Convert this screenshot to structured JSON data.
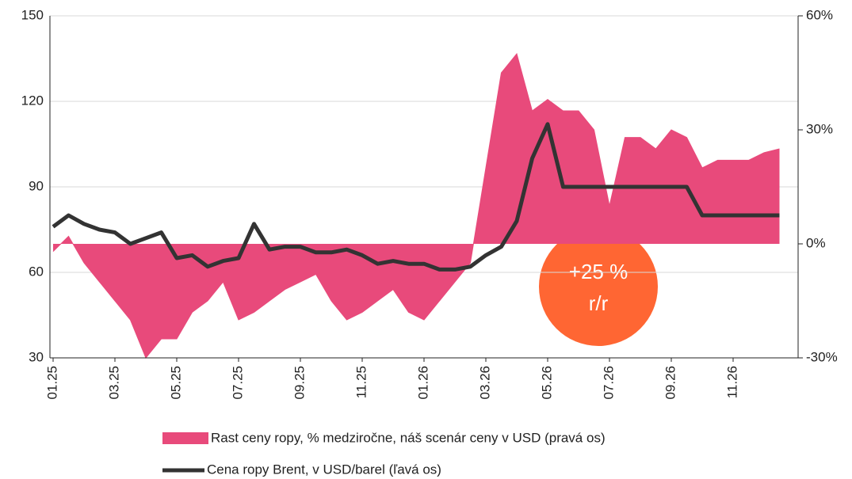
{
  "chart_data": {
    "type": "line",
    "categories": [
      "01.25",
      null,
      null,
      null,
      "03.25",
      null,
      null,
      null,
      "05.25",
      null,
      null,
      null,
      "07.25",
      null,
      null,
      null,
      "09.25",
      null,
      null,
      null,
      "11.25",
      null,
      null,
      null,
      "01.26",
      null,
      null,
      null,
      "03.26",
      null,
      null,
      null,
      "05.26",
      null,
      null,
      null,
      "07.26",
      null,
      null,
      null,
      "09.26",
      null,
      null,
      null,
      "11.26",
      null,
      null,
      null
    ],
    "series": [
      {
        "name": "Rast ceny ropy, % medziročne, náš scenár ceny v USD (pravá os)",
        "color": "#e84a7b",
        "kind": "area",
        "axis": "y2",
        "values": [
          -2,
          2,
          -5,
          -10,
          -15,
          -20,
          -30,
          -25,
          -25,
          -18,
          -15,
          -10,
          -20,
          -18,
          -15,
          -12,
          -10,
          -8,
          -15,
          -20,
          -18,
          -15,
          -12,
          -18,
          -20,
          -15,
          -10,
          -5,
          20,
          45,
          50,
          35,
          38,
          35,
          35,
          30,
          10,
          28,
          28,
          25,
          30,
          28,
          20,
          22,
          22,
          22,
          24,
          25
        ]
      },
      {
        "name": "Cena ropy Brent, v USD/barel (ľavá os)",
        "color": "#333333",
        "kind": "line",
        "values": [
          76,
          80,
          77,
          75,
          74,
          70,
          72,
          74,
          65,
          66,
          62,
          64,
          65,
          77,
          68,
          69,
          69,
          67,
          67,
          68,
          66,
          63,
          64,
          63,
          63,
          61,
          61,
          62,
          66,
          69,
          78,
          100,
          112,
          90,
          90,
          90,
          90,
          90,
          90,
          90,
          90,
          90,
          80,
          80,
          80,
          80,
          80,
          80
        ]
      }
    ],
    "ylim": [
      30,
      150
    ],
    "yticks": [
      30,
      60,
      90,
      120,
      150
    ],
    "y2lim": [
      -30,
      60
    ],
    "y2ticks": [
      {
        "value": -30,
        "label": "-30%"
      },
      {
        "value": 0,
        "label": "0%"
      },
      {
        "value": 30,
        "label": "30%"
      },
      {
        "value": 60,
        "label": "60%"
      }
    ],
    "grid": true,
    "annotation": {
      "line1": "+25 %",
      "line2": "r/r",
      "color": "#ff6633"
    }
  }
}
